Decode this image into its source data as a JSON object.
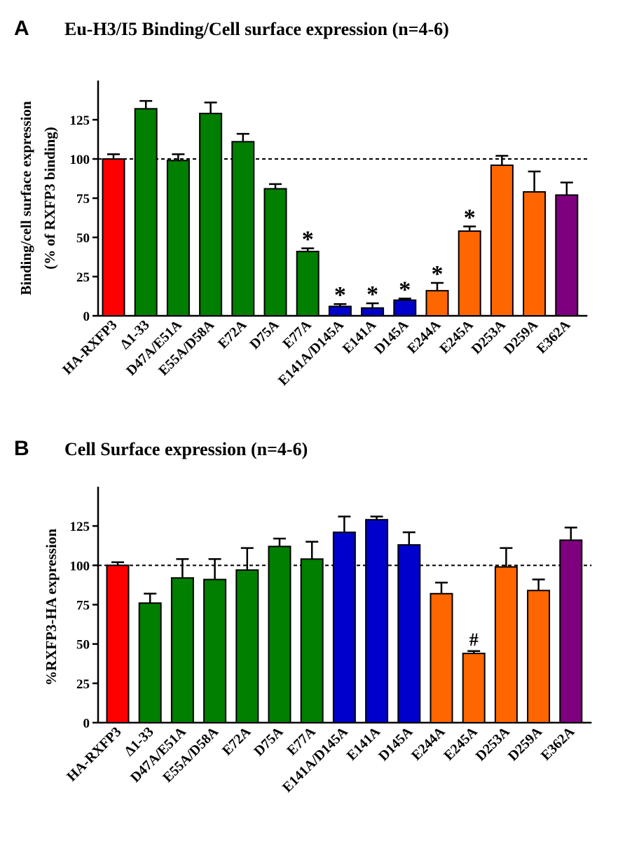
{
  "colors": {
    "red": "#ff0000",
    "green": "#007f00",
    "blue": "#0000cc",
    "orange": "#ff6600",
    "purple": "#7f007f"
  },
  "chart_data": [
    {
      "panel": "A",
      "type": "bar",
      "title": "Eu-H3/I5 Binding/Cell surface expression (n=4-6)",
      "ylabel_line1": "Binding/cell surface expression",
      "ylabel_line2": "(% of RXFP3 binding)",
      "xlabel": "",
      "ylim": [
        0,
        150
      ],
      "yticks": [
        0,
        25,
        50,
        75,
        100,
        125
      ],
      "reference_line": 100,
      "categories": [
        "HA-RXFP3",
        "Δ1-33",
        "D47A/E51A",
        "E55A/D58A",
        "E72A",
        "D75A",
        "E77A",
        "E141A/D145A",
        "E141A",
        "D145A",
        "E244A",
        "E245A",
        "D253A",
        "D259A",
        "E362A"
      ],
      "values": [
        100,
        132,
        99,
        129,
        111,
        81,
        41,
        6,
        5,
        10,
        16,
        54,
        96,
        79,
        77
      ],
      "errors": [
        3,
        5,
        4,
        7,
        5,
        3,
        2,
        1.5,
        3,
        1,
        5,
        3,
        6,
        13,
        8
      ],
      "bar_colors": [
        "red",
        "green",
        "green",
        "green",
        "green",
        "green",
        "green",
        "blue",
        "blue",
        "blue",
        "orange",
        "orange",
        "orange",
        "orange",
        "purple"
      ],
      "annotations": [
        "",
        "",
        "",
        "",
        "",
        "",
        "*",
        "*",
        "*",
        "*",
        "*",
        "*",
        "",
        "",
        ""
      ]
    },
    {
      "panel": "B",
      "type": "bar",
      "title": "Cell Surface expression (n=4-6)",
      "ylabel_line1": "%RXFP3-HA expression",
      "ylabel_line2": "",
      "xlabel": "",
      "ylim": [
        0,
        150
      ],
      "yticks": [
        0,
        25,
        50,
        75,
        100,
        125
      ],
      "reference_line": 100,
      "categories": [
        "HA-RXFP3",
        "Δ1-33",
        "D47A/E51A",
        "E55A/D58A",
        "E72A",
        "D75A",
        "E77A",
        "E141A/D145A",
        "E141A",
        "D145A",
        "E244A",
        "E245A",
        "D253A",
        "D259A",
        "E362A"
      ],
      "values": [
        100,
        76,
        92,
        91,
        97,
        112,
        104,
        121,
        129,
        113,
        82,
        44,
        99,
        84,
        116
      ],
      "errors": [
        2,
        6,
        12,
        13,
        14,
        5,
        11,
        10,
        2,
        8,
        7,
        1.5,
        12,
        7,
        8
      ],
      "bar_colors": [
        "red",
        "green",
        "green",
        "green",
        "green",
        "green",
        "green",
        "blue",
        "blue",
        "blue",
        "orange",
        "orange",
        "orange",
        "orange",
        "purple"
      ],
      "annotations": [
        "",
        "",
        "",
        "",
        "",
        "",
        "",
        "",
        "",
        "",
        "",
        "#",
        "",
        "",
        ""
      ]
    }
  ]
}
